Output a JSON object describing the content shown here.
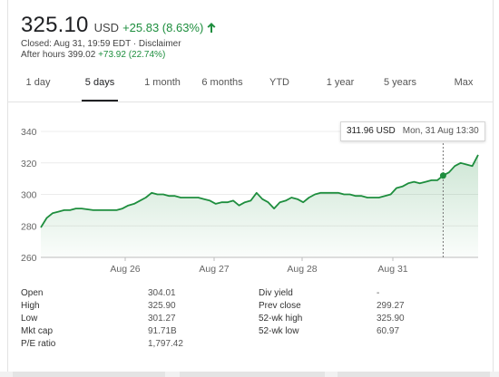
{
  "header": {
    "price": "325.10",
    "currency": "USD",
    "change": "+25.83 (8.63%)",
    "closed_label": "Closed: Aug 31, 19:59 EDT · Disclaimer",
    "after_hours_label": "After hours 399.02",
    "after_hours_change": "+73.92 (22.74%)",
    "arrow_icon": "arrow-up-icon",
    "accent_color": "#1e8e3e"
  },
  "tabs": [
    {
      "label": "1 day"
    },
    {
      "label": "5 days",
      "active": true
    },
    {
      "label": "1 month"
    },
    {
      "label": "6 months"
    },
    {
      "label": "YTD"
    },
    {
      "label": "1 year"
    },
    {
      "label": "5 years"
    },
    {
      "label": "Max"
    }
  ],
  "tooltip": {
    "value": "311.96 USD",
    "date": "Mon, 31 Aug 13:30"
  },
  "chart_data": {
    "type": "line",
    "yticks": [
      "340",
      "320",
      "300",
      "280",
      "260"
    ],
    "ylim": [
      260,
      340
    ],
    "xticks": [
      "Aug 26",
      "Aug 27",
      "Aug 28",
      "Aug 31"
    ],
    "grid": true,
    "line_color": "#1e8e3e",
    "series": [
      {
        "values": [
          279,
          285,
          288,
          289,
          290,
          290,
          291,
          291,
          290.5,
          290,
          290,
          290,
          290,
          290,
          291,
          293,
          294,
          296,
          298,
          301,
          300,
          300,
          299,
          299,
          298,
          298,
          298,
          298,
          297,
          296,
          294,
          295,
          295,
          296,
          293,
          295,
          296,
          301,
          297,
          295,
          291,
          295,
          296,
          298,
          297,
          295,
          298,
          300,
          301,
          301,
          301,
          301,
          300,
          300,
          299,
          299,
          298,
          298,
          298,
          299,
          300,
          304,
          305,
          307,
          308,
          307,
          308,
          309,
          309,
          311.96,
          314,
          318,
          320,
          319,
          318,
          325.1
        ]
      }
    ],
    "tooltip_index": 69
  },
  "stats": {
    "left": [
      {
        "label": "Open",
        "value": "304.01"
      },
      {
        "label": "High",
        "value": "325.90"
      },
      {
        "label": "Low",
        "value": "301.27"
      },
      {
        "label": "Mkt cap",
        "value": "91.71B"
      },
      {
        "label": "P/E ratio",
        "value": "1,797.42"
      }
    ],
    "right": [
      {
        "label": "Div yield",
        "value": "-"
      },
      {
        "label": "Prev close",
        "value": "299.27"
      },
      {
        "label": "52-wk high",
        "value": "325.90"
      },
      {
        "label": "52-wk low",
        "value": "60.97"
      }
    ]
  }
}
